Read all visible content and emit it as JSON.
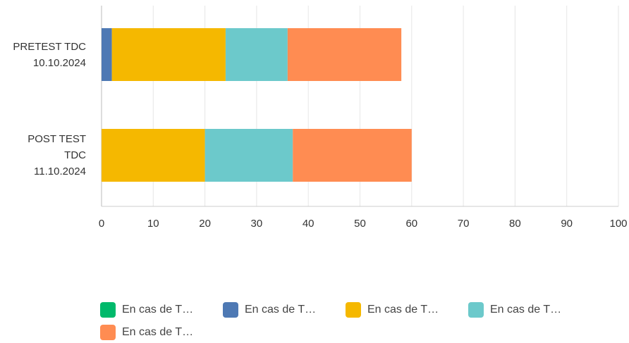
{
  "chart_data": {
    "type": "stacked-bar-horizontal",
    "categories": [
      "PRETEST TDC\n10.10.2024",
      "POST TEST\nTDC\n11.10.2024"
    ],
    "series": [
      {
        "name": "En cas de T…",
        "color": "#00b96b",
        "values": [
          0,
          0
        ]
      },
      {
        "name": "En cas de T…",
        "color": "#4e79b4",
        "values": [
          2,
          0
        ]
      },
      {
        "name": "En cas de T…",
        "color": "#f5b800",
        "values": [
          22,
          20
        ]
      },
      {
        "name": "En cas de T…",
        "color": "#6cc9cb",
        "values": [
          12,
          17
        ]
      },
      {
        "name": "En cas de T…",
        "color": "#ff8c52",
        "values": [
          22,
          23
        ]
      }
    ],
    "xlim": [
      0,
      100
    ],
    "xticks": [
      0,
      10,
      20,
      30,
      40,
      50,
      60,
      70,
      80,
      90,
      100
    ],
    "grid": true
  }
}
